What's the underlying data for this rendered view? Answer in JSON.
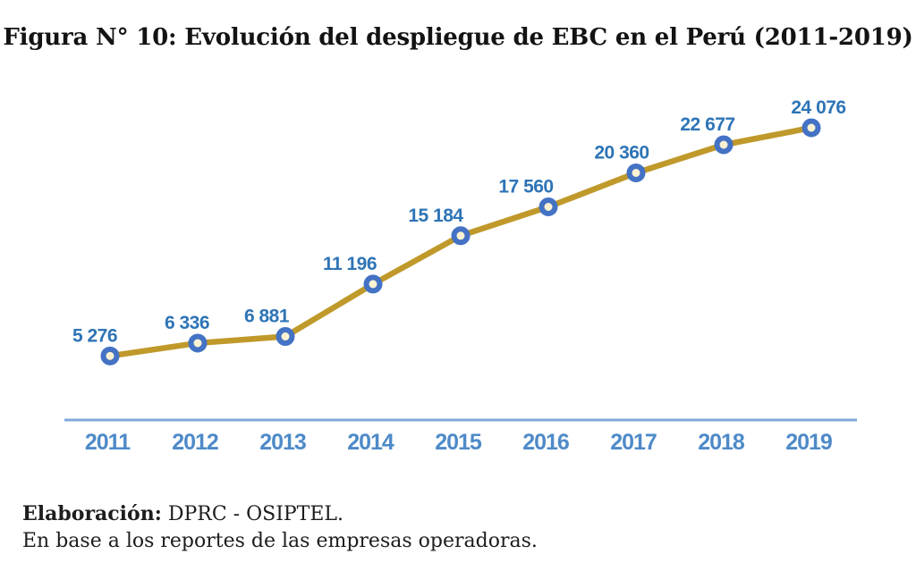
{
  "title": "Figura N° 10: Evolución del despliegue de EBC en el Perú (2011-2019)",
  "chart_data": {
    "type": "line",
    "title": "Figura N° 10: Evolución del despliegue de EBC en el Perú (2011-2019)",
    "categories": [
      "2011",
      "2012",
      "2013",
      "2014",
      "2015",
      "2016",
      "2017",
      "2018",
      "2019"
    ],
    "values": [
      5276,
      6336,
      6881,
      11196,
      15184,
      17560,
      20360,
      22677,
      24076
    ],
    "point_labels": [
      "5 276",
      "6 336",
      "6 881",
      "11 196",
      "15 184",
      "17 560",
      "20 360",
      "22 677",
      "24 076"
    ],
    "xlabel": "",
    "ylabel": "",
    "ylim": [
      0,
      27000
    ],
    "grid": false,
    "legend": "none",
    "colors": {
      "line": "#C0992B",
      "marker_ring": "#4472C4",
      "marker_fill": "#FBF2D3",
      "point_label_text": "#2E74B6",
      "axis_line": "#7FA9DC",
      "tick_label_text": "#4E8AC8"
    }
  },
  "source": {
    "label": "Elaboración:",
    "value": " DPRC - OSIPTEL.",
    "note": "En base a los reportes de las empresas operadoras."
  }
}
